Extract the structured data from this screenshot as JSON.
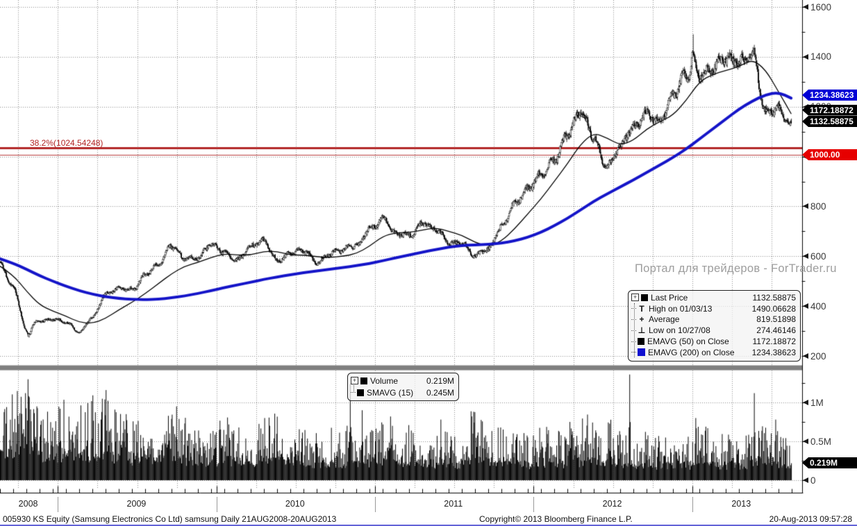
{
  "chart_data": {
    "type": "candlestick+volume",
    "title": "005930 KS Equity Daily 21AUG2008-20AUG2013",
    "x_range_label": "21AUG2008-20AUG2013",
    "n_days": 1258,
    "years": [
      "2008",
      "2009",
      "2010",
      "2011",
      "2012",
      "2013"
    ],
    "year_boundary_days": [
      92,
      344,
      596,
      848,
      1100
    ],
    "price_axis": {
      "min": 200,
      "max": 1600,
      "tick_step": 200,
      "ticks": [
        "1600",
        "1400",
        "1200",
        "1000",
        "800",
        "600",
        "400",
        "200"
      ],
      "grid": "dotted"
    },
    "volume_axis": {
      "ticks": [
        "1M",
        "0.5M",
        "0"
      ],
      "tick_values": [
        1,
        0.5,
        0
      ],
      "max_M": 1.41
    },
    "levels": {
      "fib_382": 1024.54248,
      "round_level": 1000.0
    },
    "key_points": {
      "last_price": 1132.58875,
      "high": {
        "date": "01/03/13",
        "value": 1490.06628,
        "day_index": 1101
      },
      "low": {
        "date": "10/27/08",
        "value": 274.46146,
        "day_index": 46
      },
      "average": 819.51898,
      "emavg50_last": 1172.18872,
      "emavg200_last": 1234.38623,
      "volume_last_M": 0.219,
      "smavg15_last_M": 0.245
    },
    "monthly_close": [
      580,
      470,
      300,
      345,
      350,
      330,
      295,
      360,
      445,
      465,
      470,
      530,
      560,
      640,
      600,
      590,
      640,
      620,
      590,
      630,
      660,
      590,
      610,
      615,
      580,
      615,
      620,
      640,
      720,
      750,
      680,
      690,
      740,
      700,
      650,
      660,
      600,
      620,
      720,
      820,
      860,
      920,
      1000,
      1090,
      1160,
      1080,
      970,
      1030,
      1110,
      1190,
      1140,
      1230,
      1330,
      1340,
      1340,
      1380,
      1400,
      1420,
      1160,
      1190,
      1132.59
    ],
    "ema50_monthly": [
      560,
      525,
      460,
      405,
      380,
      360,
      335,
      330,
      350,
      385,
      415,
      450,
      490,
      530,
      560,
      575,
      595,
      610,
      605,
      605,
      620,
      620,
      605,
      605,
      598,
      595,
      600,
      610,
      640,
      680,
      695,
      695,
      705,
      715,
      700,
      685,
      655,
      640,
      660,
      710,
      770,
      830,
      900,
      970,
      1050,
      1095,
      1075,
      1045,
      1065,
      1110,
      1140,
      1165,
      1225,
      1300,
      1330,
      1345,
      1360,
      1390,
      1350,
      1260,
      1172.19
    ],
    "ema200_monthly": [
      590,
      572,
      548,
      522,
      500,
      480,
      462,
      448,
      438,
      431,
      427,
      426,
      428,
      433,
      441,
      451,
      462,
      474,
      485,
      496,
      507,
      517,
      526,
      534,
      541,
      548,
      555,
      562,
      571,
      582,
      594,
      605,
      616,
      627,
      636,
      643,
      646,
      648,
      652,
      662,
      676,
      696,
      722,
      752,
      786,
      820,
      850,
      878,
      906,
      936,
      966,
      996,
      1030,
      1070,
      1110,
      1150,
      1190,
      1222,
      1248,
      1258,
      1234.39
    ],
    "volume_monthly_avg_M": [
      0.5,
      0.55,
      0.65,
      0.5,
      0.42,
      0.48,
      0.45,
      0.5,
      0.52,
      0.45,
      0.4,
      0.42,
      0.38,
      0.42,
      0.38,
      0.33,
      0.33,
      0.4,
      0.35,
      0.33,
      0.38,
      0.42,
      0.36,
      0.32,
      0.3,
      0.32,
      0.33,
      0.36,
      0.35,
      0.4,
      0.36,
      0.34,
      0.32,
      0.3,
      0.32,
      0.3,
      0.45,
      0.38,
      0.34,
      0.32,
      0.28,
      0.33,
      0.32,
      0.32,
      0.36,
      0.4,
      0.36,
      0.32,
      0.28,
      0.3,
      0.3,
      0.28,
      0.28,
      0.36,
      0.3,
      0.28,
      0.28,
      0.3,
      0.38,
      0.32,
      0.25
    ],
    "volume_spikes": [
      [
        40,
        1.12
      ],
      [
        58,
        0.95
      ],
      [
        95,
        0.92
      ],
      [
        168,
        1.16
      ],
      [
        200,
        0.85
      ],
      [
        280,
        0.95
      ],
      [
        420,
        0.8
      ],
      [
        556,
        1.24
      ],
      [
        575,
        0.9
      ],
      [
        620,
        0.82
      ],
      [
        700,
        0.78
      ],
      [
        752,
        0.88
      ],
      [
        905,
        0.75
      ],
      [
        1000,
        1.36
      ],
      [
        1105,
        0.8
      ],
      [
        1198,
        1.12
      ],
      [
        1232,
        0.78
      ]
    ]
  },
  "price_tags": {
    "ema200": "1234.38623",
    "ema50": "1172.18872",
    "last": "1132.58875",
    "level": "1000.00",
    "volume": "0.219M"
  },
  "fib_label": "38.2%(1024.54248)",
  "watermark": "Портал для трейдеров - ForTrader.ru",
  "icons": {
    "expand_plus": "+"
  },
  "marker_glyphs": {
    "high": "T",
    "avg": "+",
    "low": "⊥"
  },
  "legend_price": {
    "rows": [
      {
        "marker": "sq-black",
        "label": "Last Price",
        "value": "1132.58875"
      },
      {
        "marker": "high",
        "label": "High on 01/03/13",
        "value": "1490.06628"
      },
      {
        "marker": "avg",
        "label": "Average",
        "value": "819.51898"
      },
      {
        "marker": "low",
        "label": "Low on 10/27/08",
        "value": "274.46146"
      },
      {
        "marker": "sq-black",
        "label": "EMAVG (50) on Close",
        "value": "1172.18872"
      },
      {
        "marker": "sq-blue",
        "label": "EMAVG (200) on Close",
        "value": "1234.38623"
      }
    ]
  },
  "legend_volume": {
    "rows": [
      {
        "marker": "sq-black",
        "label": "Volume",
        "value": "0.219M"
      },
      {
        "marker": "sq-black",
        "label": "SMAVG (15)",
        "value": "0.245M"
      }
    ]
  },
  "status_bar": {
    "left": "005930 KS Equity (Samsung Electronics Co Ltd) samsung  Daily 21AUG2008-20AUG2013",
    "center": "Copyright© 2013 Bloomberg Finance L.P.",
    "right": "20-Aug-2013 09:57:28"
  },
  "colors": {
    "ema200": "#1414c8",
    "ema50": "#000000",
    "fib_line": "#b22626",
    "level_line": "#c05050",
    "grid": "#8a8a8a",
    "separator": "#7f7f7f",
    "candle": "#000000",
    "tag_ema200_bg": "#0000d6",
    "tag_black_bg": "#000000",
    "tag_level_bg": "#e60000",
    "watermark": "#9d9d9d"
  }
}
